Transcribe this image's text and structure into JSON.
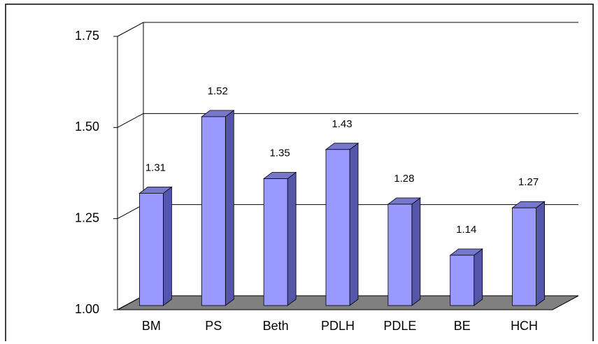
{
  "chart_data": {
    "type": "bar3d",
    "categories": [
      "BM",
      "PS",
      "Beth",
      "PDLH",
      "PDLE",
      "BE",
      "HCH"
    ],
    "values": [
      1.31,
      1.52,
      1.35,
      1.43,
      1.28,
      1.14,
      1.27
    ],
    "color": "#9999ff",
    "ylim": [
      1,
      1.75
    ],
    "yticks": [
      {
        "value": 1,
        "label": "1.00"
      },
      {
        "value": 1.25,
        "label": "1.25"
      },
      {
        "value": 1.5,
        "label": "1.50"
      },
      1.75
    ],
    "grid": true
  }
}
